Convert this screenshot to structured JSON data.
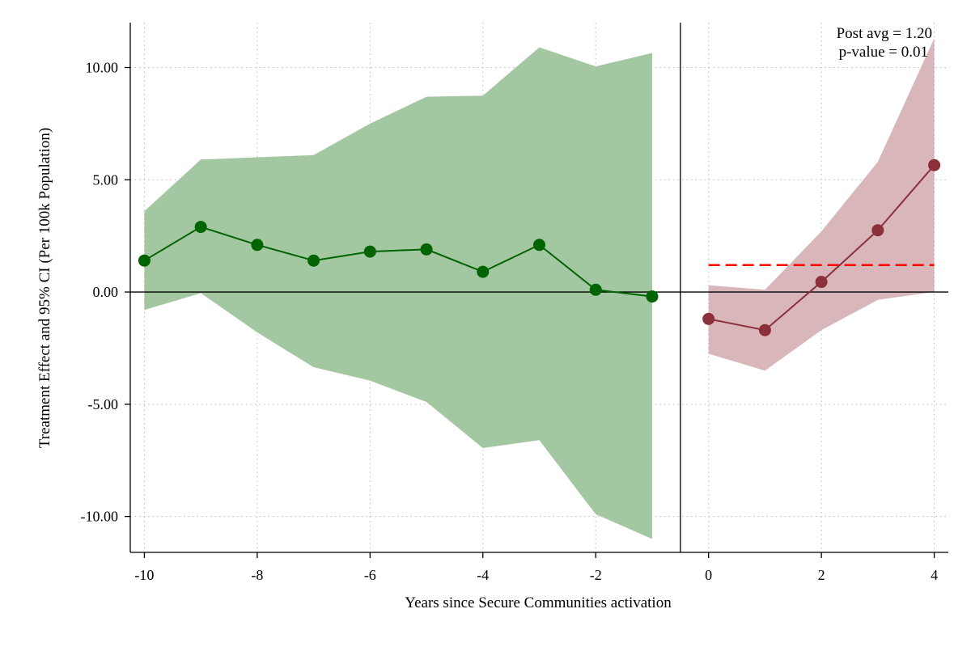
{
  "chart_data": {
    "type": "line",
    "xlabel": "Years since Secure Communities activation",
    "ylabel": "Treatment Effect and 95% CI (Per 100k Population)",
    "xlim": [
      -10.25,
      4.25
    ],
    "ylim": [
      -11.6,
      12.0
    ],
    "x_ticks": [
      -10,
      -8,
      -6,
      -4,
      -2,
      0,
      2,
      4
    ],
    "y_ticks": [
      10,
      5,
      0,
      -5,
      -10
    ],
    "y_tick_labels": [
      "10.00",
      "5.00",
      "0.00",
      "-5.00",
      "-10.00"
    ],
    "grid": true,
    "treatment_line_x": -0.5,
    "zero_line_y": 0,
    "series": [
      {
        "period": "pre",
        "color": "#006400",
        "ci_color": "#a3c7a1",
        "x": [
          -10,
          -9,
          -8,
          -7,
          -6,
          -5,
          -4,
          -3,
          -2,
          -1
        ],
        "y": [
          1.4,
          2.9,
          2.1,
          1.4,
          1.8,
          1.9,
          0.9,
          2.1,
          0.1,
          -0.2
        ],
        "ci_upper": [
          3.6,
          5.9,
          6.0,
          6.1,
          7.5,
          8.7,
          8.75,
          10.9,
          10.05,
          10.65
        ],
        "ci_lower": [
          -0.8,
          -0.05,
          -1.8,
          -3.35,
          -3.95,
          -4.9,
          -6.95,
          -6.6,
          -9.9,
          -11.0
        ]
      },
      {
        "period": "post",
        "color": "#8b2f3a",
        "ci_color": "#d8b6ba",
        "x": [
          0,
          1,
          2,
          3,
          4
        ],
        "y": [
          -1.2,
          -1.7,
          0.45,
          2.75,
          5.65
        ],
        "ci_upper": [
          0.3,
          0.1,
          2.7,
          5.8,
          11.3
        ],
        "ci_lower": [
          -2.75,
          -3.5,
          -1.7,
          -0.35,
          0.0
        ]
      }
    ],
    "post_average": {
      "value": 1.2,
      "color": "#ff0000",
      "x_range": [
        0,
        4
      ]
    },
    "annotations": [
      "Post avg = 1.20",
      "p-value = 0.01"
    ]
  }
}
